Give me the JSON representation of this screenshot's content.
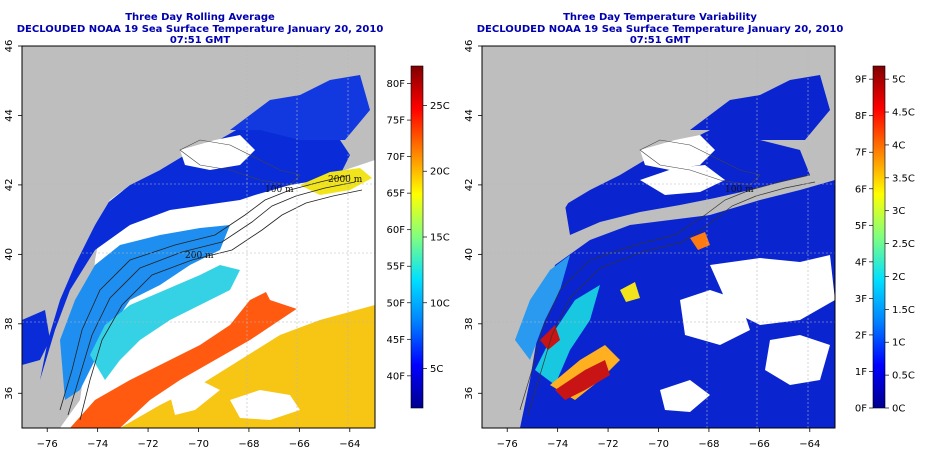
{
  "colors": {
    "land": "#bebebe",
    "nodata": "#ffffff",
    "cold": "#0a2bd8",
    "title": "#0000b0",
    "grid": "#b8b8b8"
  },
  "axes": {
    "x_ticks": [
      "−76",
      "−74",
      "−72",
      "−70",
      "−68",
      "−66",
      "−64"
    ],
    "y_ticks": [
      "36",
      "38",
      "40",
      "42",
      "44",
      "46"
    ],
    "x_range": [
      -77,
      -63
    ],
    "y_range": [
      35,
      46
    ]
  },
  "contour_labels": [
    "100 m",
    "200 m",
    "2000 m"
  ],
  "panels": [
    {
      "title1": "Three Day Rolling Average",
      "title2": "DECLOUDED NOAA 19 Sea Surface Temperature January 20, 2010 07:51 GMT",
      "colorbar": {
        "f_labels": [
          "40F",
          "45F",
          "50F",
          "55F",
          "60F",
          "65F",
          "70F",
          "75F",
          "80F"
        ],
        "c_labels": [
          "5C",
          "10C",
          "15C",
          "20C",
          "25C"
        ],
        "f_range": [
          35.6,
          82.4
        ],
        "c_range": [
          2,
          28
        ],
        "gradient": [
          "#00008f",
          "#0000ff",
          "#0080ff",
          "#00e0ff",
          "#80ff80",
          "#ffff00",
          "#ff8000",
          "#ff0000",
          "#800000"
        ]
      }
    },
    {
      "title1": "Three Day Temperature Variability",
      "title2": "DECLOUDED NOAA 19 Sea Surface Temperature January 20, 2010 07:51 GMT",
      "colorbar": {
        "f_labels": [
          "0F",
          "1F",
          "2F",
          "3F",
          "4F",
          "5F",
          "6F",
          "7F",
          "8F",
          "9F"
        ],
        "c_labels": [
          "0C",
          "0.5C",
          "1C",
          "1.5C",
          "2C",
          "2.5C",
          "3C",
          "3.5C",
          "4C",
          "4.5C",
          "5C"
        ],
        "f_range": [
          0,
          9.36
        ],
        "c_range": [
          0,
          5.2
        ],
        "gradient": [
          "#00008f",
          "#0000ff",
          "#0080ff",
          "#00e0ff",
          "#80ff80",
          "#ffff00",
          "#ff8000",
          "#ff0000",
          "#800000"
        ]
      }
    }
  ]
}
